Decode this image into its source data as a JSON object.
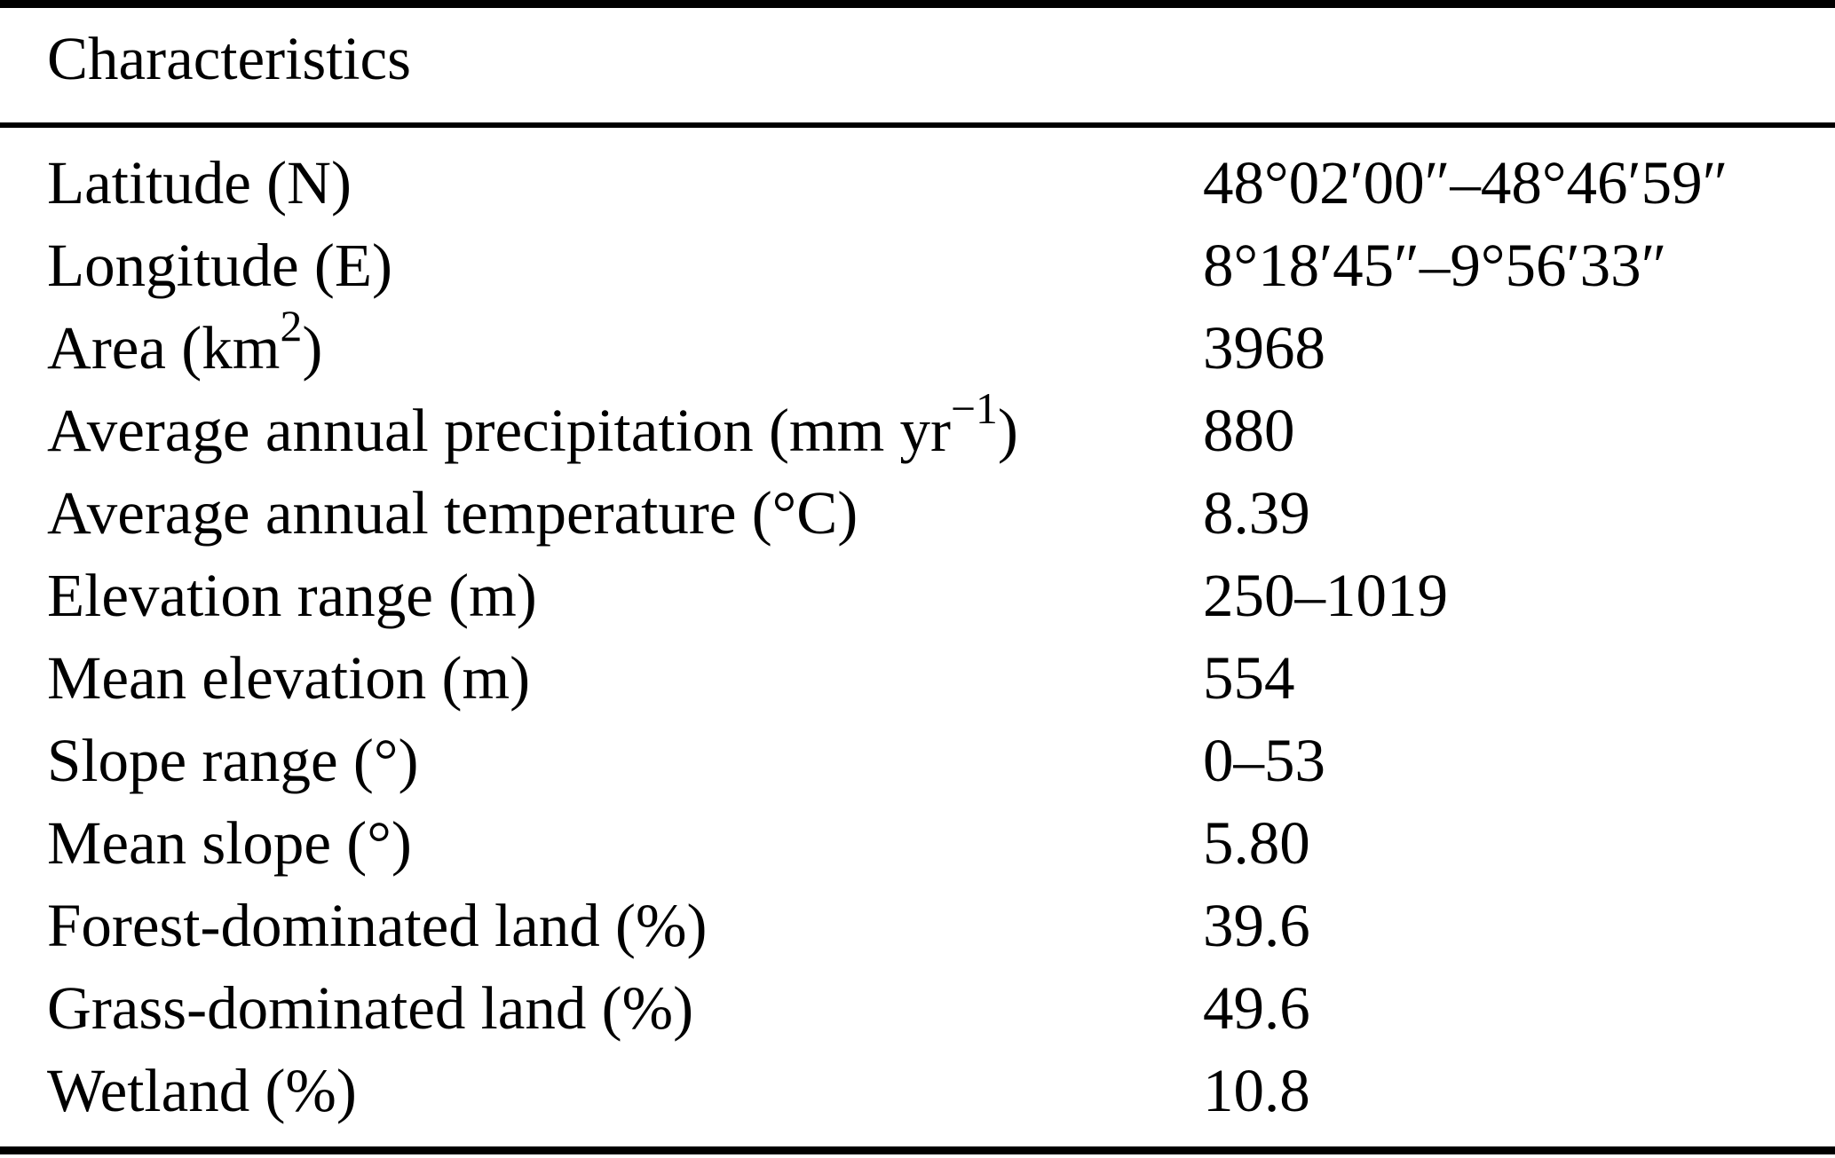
{
  "table": {
    "header": "Characteristics",
    "colors": {
      "text": "#000000",
      "background": "#ffffff",
      "rule": "#000000"
    },
    "rows": [
      {
        "label": [
          {
            "t": "Latitude (N)"
          }
        ],
        "value": [
          {
            "t": "48°02′00″–48°46′59″"
          }
        ]
      },
      {
        "label": [
          {
            "t": "Longitude (E)"
          }
        ],
        "value": [
          {
            "t": "8°18′45″–9°56′33″"
          }
        ]
      },
      {
        "label": [
          {
            "t": "Area (km"
          },
          {
            "t": "2",
            "sup": true
          },
          {
            "t": ")"
          }
        ],
        "value": [
          {
            "t": "3968"
          }
        ]
      },
      {
        "label": [
          {
            "t": "Average annual precipitation (mm yr"
          },
          {
            "t": "−1",
            "sup": true
          },
          {
            "t": ")"
          }
        ],
        "value": [
          {
            "t": "880"
          }
        ]
      },
      {
        "label": [
          {
            "t": "Average annual temperature (°C)"
          }
        ],
        "value": [
          {
            "t": "8.39"
          }
        ]
      },
      {
        "label": [
          {
            "t": "Elevation range (m)"
          }
        ],
        "value": [
          {
            "t": "250–1019"
          }
        ]
      },
      {
        "label": [
          {
            "t": "Mean elevation (m)"
          }
        ],
        "value": [
          {
            "t": "554"
          }
        ]
      },
      {
        "label": [
          {
            "t": "Slope range (°)"
          }
        ],
        "value": [
          {
            "t": "0–53"
          }
        ]
      },
      {
        "label": [
          {
            "t": "Mean slope (°)"
          }
        ],
        "value": [
          {
            "t": "5.80"
          }
        ]
      },
      {
        "label": [
          {
            "t": "Forest-dominated land (%)"
          }
        ],
        "value": [
          {
            "t": "39.6"
          }
        ]
      },
      {
        "label": [
          {
            "t": "Grass-dominated land (%)"
          }
        ],
        "value": [
          {
            "t": "49.6"
          }
        ]
      },
      {
        "label": [
          {
            "t": "Wetland (%)"
          }
        ],
        "value": [
          {
            "t": "10.8"
          }
        ]
      }
    ]
  }
}
